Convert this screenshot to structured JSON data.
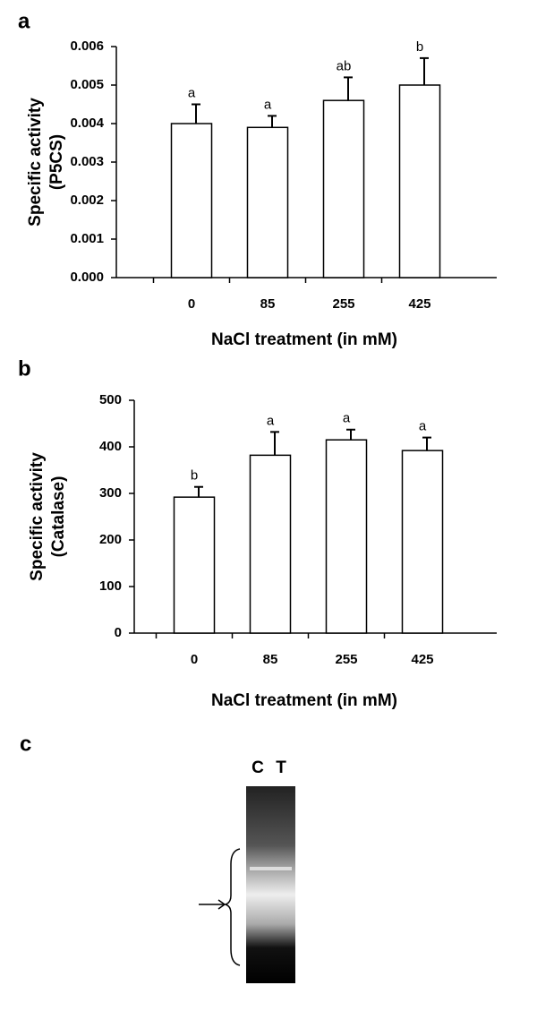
{
  "chart_data": [
    {
      "type": "bar",
      "panel_label": "a",
      "ylabel": [
        "Specific activity",
        "(P5CS)"
      ],
      "xlabel": "NaCl treatment (in mM)",
      "categories": [
        "0",
        "85",
        "255",
        "425"
      ],
      "values": [
        0.004,
        0.0039,
        0.0046,
        0.005
      ],
      "errors": [
        0.0005,
        0.0003,
        0.0006,
        0.0007
      ],
      "value_labels": [
        "a",
        "a",
        "ab",
        "b"
      ],
      "color": "#ffffff",
      "ylim": [
        0,
        0.006
      ],
      "yticks": [
        {
          "value": 0,
          "label": "0.000"
        },
        {
          "value": 0.001,
          "label": "0.001"
        },
        {
          "value": 0.002,
          "label": "0.002"
        },
        {
          "value": 0.003,
          "label": "0.003"
        },
        {
          "value": 0.004,
          "label": "0.004"
        },
        {
          "value": 0.005,
          "label": "0.005"
        },
        {
          "value": 0.006,
          "label": "0.006"
        }
      ]
    },
    {
      "type": "bar",
      "panel_label": "b",
      "ylabel": [
        "Specific activity",
        "(Catalase)"
      ],
      "xlabel": "NaCl treatment (in mM)",
      "categories": [
        "0",
        "85",
        "255",
        "425"
      ],
      "values": [
        292,
        382,
        415,
        392
      ],
      "errors": [
        22,
        50,
        22,
        28
      ],
      "value_labels": [
        "b",
        "a",
        "a",
        "a"
      ],
      "color": "#ffffff",
      "ylim": [
        0,
        500
      ],
      "yticks": [
        0,
        100,
        200,
        300,
        400,
        500
      ]
    }
  ],
  "gel": {
    "panel_label": "c",
    "lanes": [
      "C",
      "T"
    ]
  }
}
